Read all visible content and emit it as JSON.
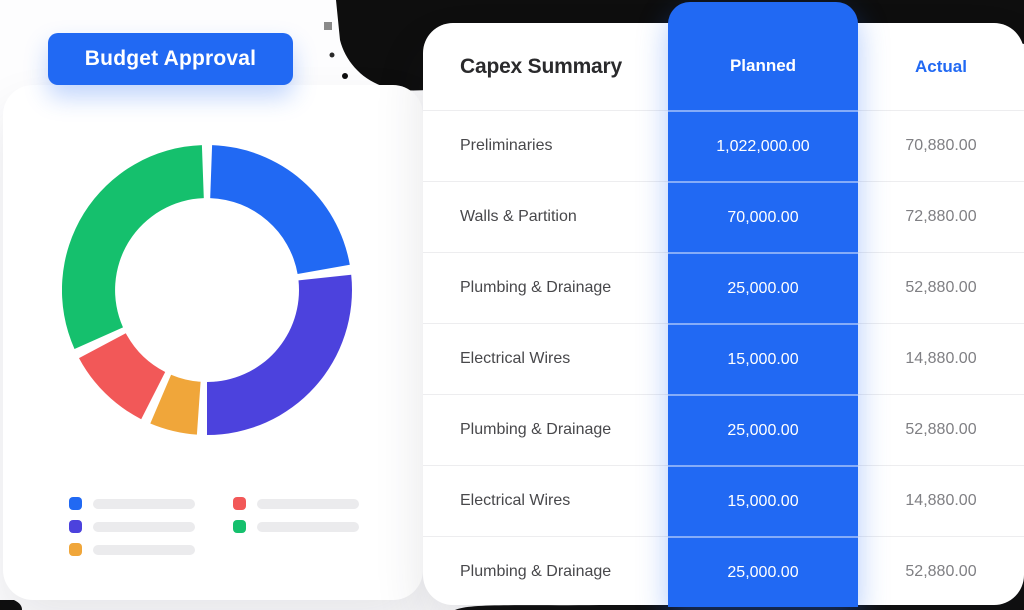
{
  "budget_card": {
    "badge_label": "Budget Approval",
    "legend": {
      "labels": "placeholder-bars",
      "columns": [
        {
          "items": [
            {
              "color": "#2169f3"
            },
            {
              "color": "#4c42dd"
            },
            {
              "color": "#f0a63a"
            }
          ]
        },
        {
          "items": [
            {
              "color": "#f25858"
            },
            {
              "color": "#15c06d"
            }
          ]
        }
      ]
    }
  },
  "chart_data": {
    "type": "pie",
    "subtype": "donut",
    "title": "Budget Approval",
    "legend_position": "bottom",
    "legend_labels_visible": false,
    "inner_radius_ratio": 0.63,
    "segments": [
      {
        "name": "segment-blue",
        "color": "#2169f3",
        "start_deg": 2,
        "end_deg": 80,
        "percent": 22.0
      },
      {
        "name": "segment-indigo",
        "color": "#4c42dd",
        "start_deg": 84,
        "end_deg": 180,
        "percent": 27.0
      },
      {
        "name": "segment-orange",
        "color": "#f0a63a",
        "start_deg": 184,
        "end_deg": 203,
        "percent": 5.5
      },
      {
        "name": "segment-red",
        "color": "#f25858",
        "start_deg": 207,
        "end_deg": 242,
        "percent": 10.0
      },
      {
        "name": "segment-green",
        "color": "#15c06d",
        "start_deg": 246,
        "end_deg": 358,
        "percent": 31.5
      }
    ]
  },
  "capex_table": {
    "title": "Capex Summary",
    "columns": {
      "planned_label": "Planned",
      "actual_label": "Actual"
    },
    "rows": [
      {
        "category": "Preliminaries",
        "planned": "1,022,000.00",
        "actual": "70,880.00"
      },
      {
        "category": "Walls & Partition",
        "planned": "70,000.00",
        "actual": "72,880.00"
      },
      {
        "category": "Plumbing & Drainage",
        "planned": "25,000.00",
        "actual": "52,880.00"
      },
      {
        "category": "Electrical Wires",
        "planned": "15,000.00",
        "actual": "14,880.00"
      },
      {
        "category": "Plumbing & Drainage",
        "planned": "25,000.00",
        "actual": "52,880.00"
      },
      {
        "category": "Electrical Wires",
        "planned": "15,000.00",
        "actual": "14,880.00"
      },
      {
        "category": "Plumbing & Drainage",
        "planned": "25,000.00",
        "actual": "52,880.00"
      }
    ]
  },
  "colors": {
    "brand_blue": "#2169f3",
    "donut_indigo": "#4c42dd",
    "donut_orange": "#f0a63a",
    "donut_red": "#f25858",
    "donut_green": "#15c06d",
    "ink_decor": "#0e0e0e",
    "title_text": "#2a2a2c",
    "category_text": "#48484b",
    "actual_value_text": "#7f7f83",
    "divider": "#ededef",
    "legend_bar": "#ebebed"
  }
}
